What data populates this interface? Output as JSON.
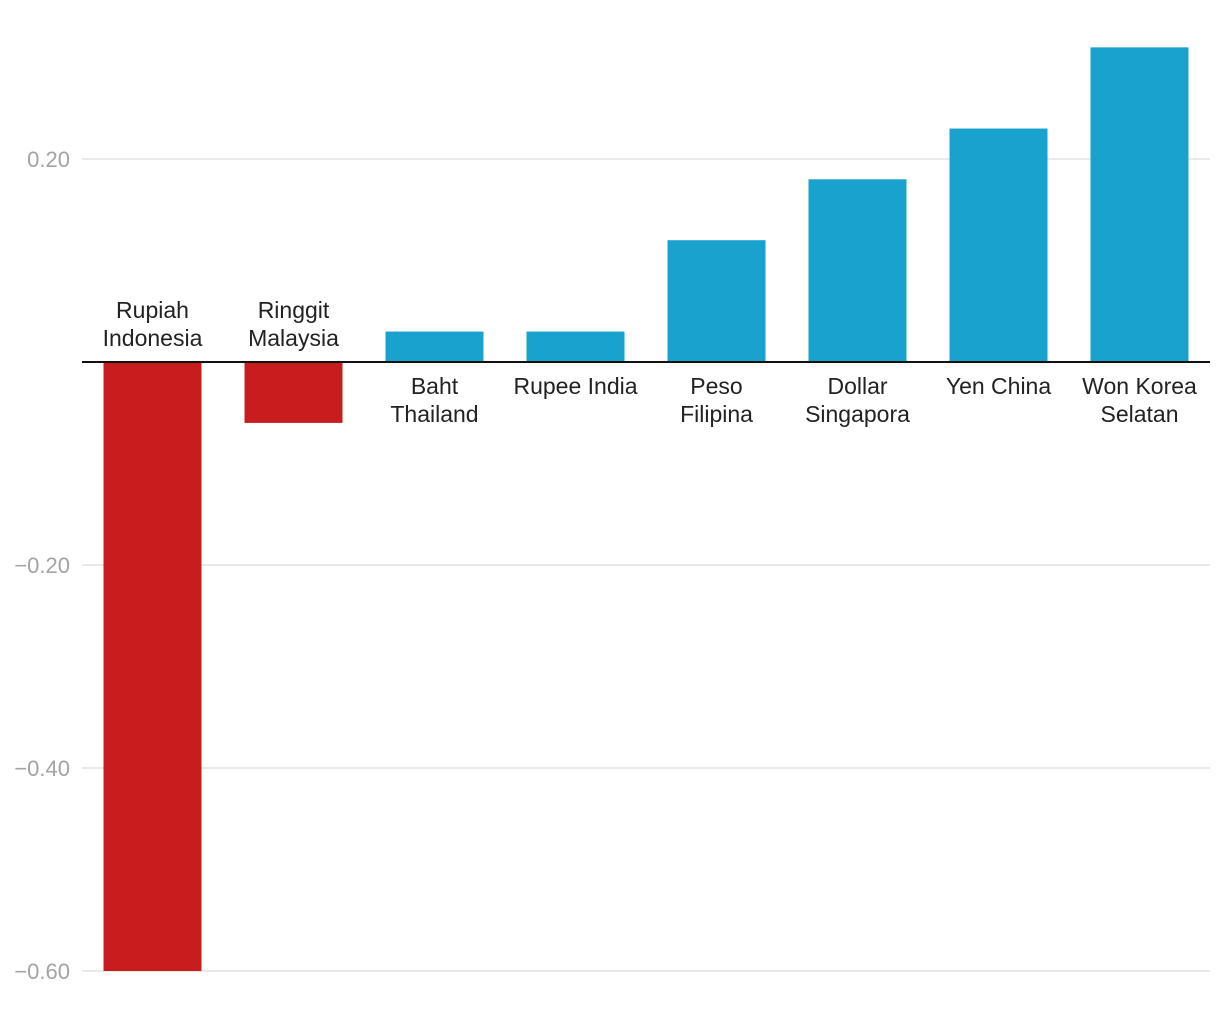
{
  "chart_data": {
    "type": "bar",
    "categories": [
      [
        "Rupiah",
        "Indonesia"
      ],
      [
        "Ringgit",
        "Malaysia"
      ],
      [
        "Baht",
        "Thailand"
      ],
      [
        "Rupee India"
      ],
      [
        "Peso",
        "Filipina"
      ],
      [
        "Dollar",
        "Singapora"
      ],
      [
        "Yen China"
      ],
      [
        "Won Korea",
        "Selatan"
      ]
    ],
    "values": [
      -0.6,
      -0.06,
      0.03,
      0.03,
      0.12,
      0.18,
      0.23,
      0.31
    ],
    "ylim": [
      -0.6,
      0.31
    ],
    "yticks": [
      0.2,
      -0.2,
      -0.4,
      -0.6
    ],
    "ytick_labels": [
      "0.20",
      "−0.20",
      "−0.40",
      "−0.60"
    ],
    "grid": true,
    "colors": {
      "positive": "#1aa2ce",
      "negative": "#c81d1f"
    }
  }
}
